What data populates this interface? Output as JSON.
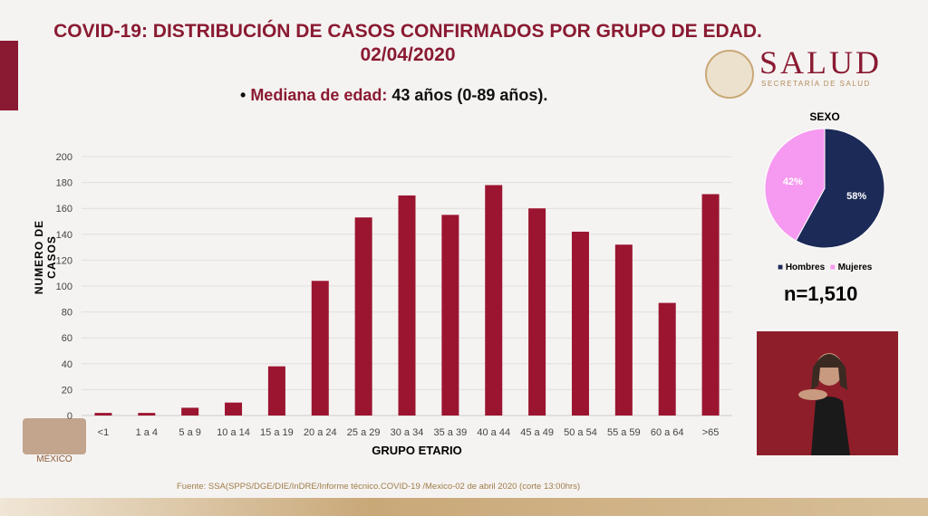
{
  "title": "COVID-19: DISTRIBUCIÓN DE CASOS CONFIRMADOS POR GRUPO DE EDAD.",
  "date": "02/04/2020",
  "median": {
    "label": "Mediana de edad:",
    "value": "43 años (0-89 años)."
  },
  "logo": {
    "name": "SALUD",
    "subtitle": "SECRETARÍA DE SALUD"
  },
  "footer_logo": "MÉXICO",
  "source": "Fuente: SSA(SPPS/DGE/DIE/InDRE/Informe técnico.COVID-19 /Mexico-02 de abril 2020 (corte 13:00hrs)",
  "chart_data": [
    {
      "type": "bar",
      "title": "",
      "xlabel": "GRUPO ETARIO",
      "ylabel": "NUMERO DE CASOS",
      "ylim": [
        0,
        200
      ],
      "yticks": [
        0,
        20,
        40,
        60,
        80,
        100,
        120,
        140,
        160,
        180,
        200
      ],
      "grid": true,
      "color": "#9b1530",
      "categories": [
        "<1",
        "1 a 4",
        "5 a 9",
        "10 a 14",
        "15 a 19",
        "20 a 24",
        "25 a 29",
        "30 a 34",
        "35 a 39",
        "40 a 44",
        "45 a 49",
        "50 a 54",
        "55 a 59",
        "60 a 64",
        ">65"
      ],
      "values": [
        2,
        2,
        6,
        10,
        38,
        104,
        153,
        170,
        155,
        178,
        160,
        142,
        132,
        87,
        171
      ]
    },
    {
      "type": "pie",
      "title": "SEXO",
      "categories": [
        "Hombres",
        "Mujeres"
      ],
      "values": [
        58,
        42
      ],
      "labels": [
        "58%",
        "42%"
      ],
      "colors": [
        "#1c2a57",
        "#f59af0"
      ],
      "legend": "bottom",
      "note": "n=1,510"
    }
  ]
}
